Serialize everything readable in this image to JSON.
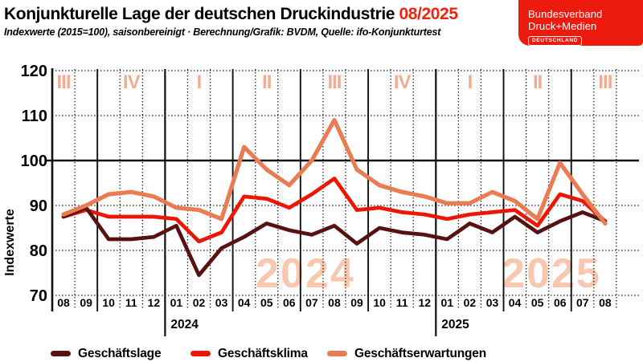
{
  "header": {
    "title": "Konjunkturelle Lage der deutschen Druckindustrie",
    "period": "08/2025",
    "period_color": "#F0230E",
    "subtitle": "Indexwerte (2015=100), saisonbereinigt · Berechnung/Grafik: BVDM, Quelle: ifo-Konjunkturtest"
  },
  "logo": {
    "line1": "Bundesverband",
    "line2": "Druck+Medien",
    "badge": "DEUTSCHLAND",
    "bg_color": "#ED1B0E"
  },
  "chart_data": {
    "type": "line",
    "title": "Konjunkturelle Lage der deutschen Druckindustrie 08/2025",
    "ylabel": "Indexwerte",
    "xlabel": "",
    "ylim": [
      70,
      120
    ],
    "yticks": [
      120,
      110,
      100,
      90,
      80,
      70
    ],
    "baseline_value": 100,
    "grid": "dotted",
    "legend_position": "bottom",
    "x_months": [
      "08",
      "09",
      "10",
      "11",
      "12",
      "01",
      "02",
      "03",
      "04",
      "05",
      "06",
      "07",
      "08",
      "09",
      "10",
      "11",
      "12",
      "01",
      "02",
      "03",
      "04",
      "05",
      "06",
      "07",
      "08"
    ],
    "year_labels": [
      {
        "label": "2024",
        "after_index": 4
      },
      {
        "label": "2025",
        "after_index": 16
      }
    ],
    "quarter_boundaries_after": [
      1,
      4,
      7,
      10,
      13,
      16,
      19,
      22
    ],
    "quarter_labels": [
      {
        "label": "III",
        "month": 0
      },
      {
        "label": "IV",
        "month": 3
      },
      {
        "label": "I",
        "month": 6
      },
      {
        "label": "II",
        "month": 9
      },
      {
        "label": "III",
        "month": 12
      },
      {
        "label": "IV",
        "month": 15
      },
      {
        "label": "I",
        "month": 18
      },
      {
        "label": "II",
        "month": 21
      },
      {
        "label": "III",
        "month": 24
      }
    ],
    "watermarks": [
      {
        "text": "2024"
      },
      {
        "text": "2025"
      }
    ],
    "colors": {
      "watermark": "#F9C6AE",
      "quarter_label": "#F3AC8F",
      "grid": "#111111",
      "text": "#000000"
    },
    "series": [
      {
        "name": "Geschäftslage",
        "slug": "geschaeftslage",
        "color": "#571110",
        "values": [
          87.5,
          89.5,
          82.5,
          82.5,
          83,
          85.5,
          74.5,
          80.5,
          83,
          86,
          84.5,
          83.5,
          85.5,
          81.5,
          85,
          84,
          83.5,
          82.5,
          86,
          84,
          87.5,
          84,
          86.5,
          88.5,
          86.5
        ]
      },
      {
        "name": "Geschäftsklima",
        "slug": "geschaeftsklima",
        "color": "#EF1505",
        "values": [
          87.5,
          89,
          87.5,
          87.5,
          87.5,
          87,
          82,
          84,
          92,
          91.5,
          89.5,
          92.5,
          96,
          89,
          89.5,
          88.5,
          88,
          87,
          88,
          88.5,
          89,
          85.5,
          92.5,
          91,
          86.5
        ]
      },
      {
        "name": "Geschäftserwartungen",
        "slug": "geschaeftserwartungen",
        "color": "#E97C52",
        "values": [
          88,
          90,
          92.5,
          93,
          92,
          89.5,
          89,
          87,
          103,
          98,
          94.5,
          100,
          109,
          98,
          94.5,
          93,
          92,
          90.5,
          90.5,
          93,
          91,
          87,
          99.5,
          92.5,
          86
        ]
      }
    ]
  }
}
